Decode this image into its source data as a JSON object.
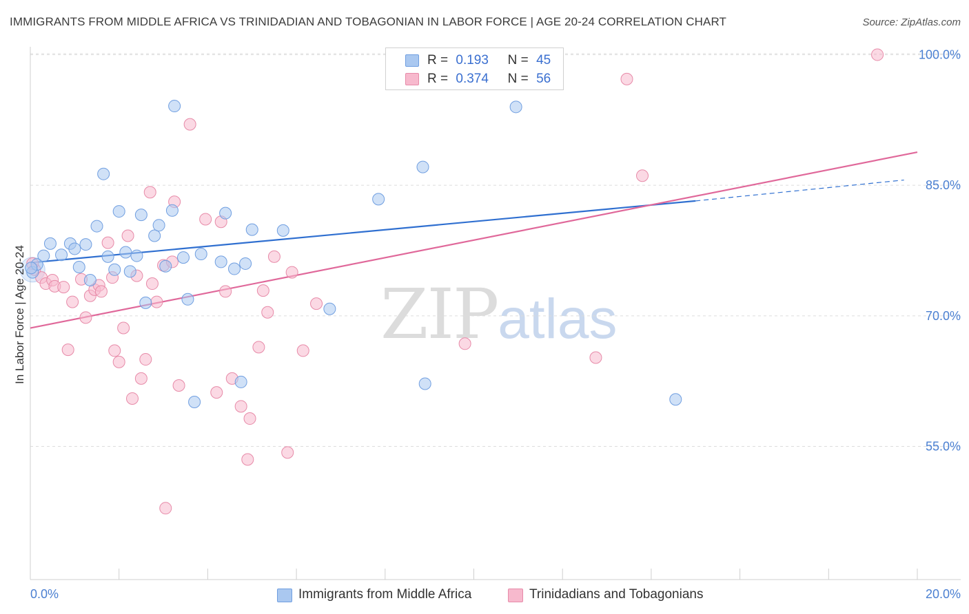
{
  "header": {
    "title": "IMMIGRANTS FROM MIDDLE AFRICA VS TRINIDADIAN AND TOBAGONIAN IN LABOR FORCE | AGE 20-24 CORRELATION CHART",
    "source": "Source: ZipAtlas.com"
  },
  "watermark": {
    "zip": "ZIP",
    "atlas": "atlas"
  },
  "legend": {
    "blue": {
      "r_label": "R =",
      "r_value": "0.193",
      "n_label": "N =",
      "n_value": "45"
    },
    "pink": {
      "r_label": "R =",
      "r_value": "0.374",
      "n_label": "N =",
      "n_value": "56"
    }
  },
  "bottom_legend": {
    "blue": "Immigrants from Middle Africa",
    "pink": "Trinidadians and Tobagonians"
  },
  "colors": {
    "blue_fill": "#aac8f0",
    "blue_stroke": "#6f9ee0",
    "blue_line": "#2f6fd0",
    "pink_fill": "#f7b9cd",
    "pink_stroke": "#e78aa8",
    "pink_line": "#e0689a",
    "grid": "#dcdcdc",
    "tick_text": "#4a7fd1"
  },
  "chart_data": {
    "type": "scatter",
    "title": "IMMIGRANTS FROM MIDDLE AFRICA VS TRINIDADIAN AND TOBAGONIAN IN LABOR FORCE | AGE 20-24 CORRELATION CHART",
    "xlabel": "",
    "ylabel": "In Labor Force | Age 20-24",
    "xlim": [
      0,
      20
    ],
    "ylim": [
      39.7,
      101.3
    ],
    "x_tick_labels": [
      "0.0%",
      "20.0%"
    ],
    "y_ticks": [
      55,
      70,
      85,
      100
    ],
    "y_tick_labels": [
      "55.0%",
      "70.0%",
      "85.0%",
      "100.0%"
    ],
    "grid": true,
    "legend_position": "top-center",
    "series": [
      {
        "name": "Immigrants from Middle Africa",
        "color": "blue",
        "R": 0.193,
        "N": 45,
        "trend": {
          "x0": 0,
          "y0": 76.1,
          "x1": 15.0,
          "y1": 83.2,
          "dashed_to_x": 19.7,
          "dashed_to_y": 85.6
        },
        "points": [
          [
            0.05,
            75.0
          ],
          [
            0.15,
            75.9
          ],
          [
            0.3,
            76.9
          ],
          [
            0.45,
            78.3
          ],
          [
            0.7,
            77.0
          ],
          [
            0.9,
            78.3
          ],
          [
            1.0,
            77.7
          ],
          [
            1.1,
            75.6
          ],
          [
            1.25,
            78.2
          ],
          [
            1.35,
            74.1
          ],
          [
            1.5,
            80.3
          ],
          [
            1.65,
            86.3
          ],
          [
            1.75,
            76.8
          ],
          [
            1.9,
            75.3
          ],
          [
            2.0,
            82.0
          ],
          [
            2.15,
            77.3
          ],
          [
            2.25,
            75.1
          ],
          [
            2.4,
            76.9
          ],
          [
            2.5,
            81.6
          ],
          [
            2.6,
            71.5
          ],
          [
            2.8,
            79.2
          ],
          [
            2.9,
            80.4
          ],
          [
            3.05,
            75.7
          ],
          [
            3.2,
            82.1
          ],
          [
            3.25,
            94.1
          ],
          [
            3.45,
            76.7
          ],
          [
            3.55,
            71.9
          ],
          [
            3.85,
            77.1
          ],
          [
            4.3,
            76.2
          ],
          [
            4.4,
            81.8
          ],
          [
            4.6,
            75.4
          ],
          [
            4.75,
            62.4
          ],
          [
            4.85,
            76.0
          ],
          [
            5.0,
            79.9
          ],
          [
            3.7,
            60.1
          ],
          [
            5.7,
            79.8
          ],
          [
            6.75,
            70.8
          ],
          [
            7.85,
            83.4
          ],
          [
            8.85,
            87.1
          ],
          [
            8.9,
            62.2
          ],
          [
            10.95,
            94.0
          ],
          [
            11.4,
            100.0
          ],
          [
            11.55,
            100.0
          ],
          [
            14.55,
            60.4
          ],
          [
            0.02,
            75.5
          ]
        ]
      },
      {
        "name": "Trinidadians and Tobagonians",
        "color": "pink",
        "R": 0.374,
        "N": 56,
        "trend": {
          "x0": 0,
          "y0": 68.6,
          "x1": 20,
          "y1": 88.8
        },
        "points": [
          [
            0.1,
            75.3
          ],
          [
            0.25,
            74.4
          ],
          [
            0.35,
            73.7
          ],
          [
            0.5,
            74.1
          ],
          [
            0.55,
            73.4
          ],
          [
            0.75,
            73.3
          ],
          [
            0.85,
            66.1
          ],
          [
            0.95,
            71.6
          ],
          [
            1.15,
            74.2
          ],
          [
            1.25,
            69.8
          ],
          [
            1.35,
            72.3
          ],
          [
            1.45,
            73.0
          ],
          [
            1.55,
            73.5
          ],
          [
            1.75,
            78.4
          ],
          [
            1.85,
            74.4
          ],
          [
            1.9,
            66.0
          ],
          [
            2.0,
            64.7
          ],
          [
            2.1,
            68.6
          ],
          [
            2.2,
            79.2
          ],
          [
            2.3,
            60.5
          ],
          [
            2.4,
            74.6
          ],
          [
            2.5,
            62.8
          ],
          [
            2.6,
            65.0
          ],
          [
            2.7,
            84.2
          ],
          [
            2.75,
            73.7
          ],
          [
            2.85,
            71.6
          ],
          [
            3.0,
            75.8
          ],
          [
            3.05,
            47.9
          ],
          [
            3.2,
            76.2
          ],
          [
            3.25,
            83.1
          ],
          [
            3.35,
            62.0
          ],
          [
            3.6,
            92.0
          ],
          [
            3.95,
            81.1
          ],
          [
            4.2,
            61.2
          ],
          [
            4.3,
            80.8
          ],
          [
            4.4,
            72.8
          ],
          [
            4.55,
            62.8
          ],
          [
            4.75,
            59.6
          ],
          [
            4.9,
            53.5
          ],
          [
            4.95,
            58.2
          ],
          [
            5.15,
            66.4
          ],
          [
            5.25,
            72.9
          ],
          [
            5.35,
            70.4
          ],
          [
            5.5,
            76.8
          ],
          [
            5.8,
            54.3
          ],
          [
            5.9,
            75.0
          ],
          [
            6.15,
            66.0
          ],
          [
            6.45,
            71.4
          ],
          [
            9.8,
            66.8
          ],
          [
            12.75,
            65.2
          ],
          [
            13.45,
            97.2
          ],
          [
            13.8,
            86.1
          ],
          [
            19.1,
            100.0
          ],
          [
            11.35,
            100.0
          ],
          [
            0.05,
            76.0
          ],
          [
            1.6,
            72.8
          ]
        ]
      }
    ]
  }
}
